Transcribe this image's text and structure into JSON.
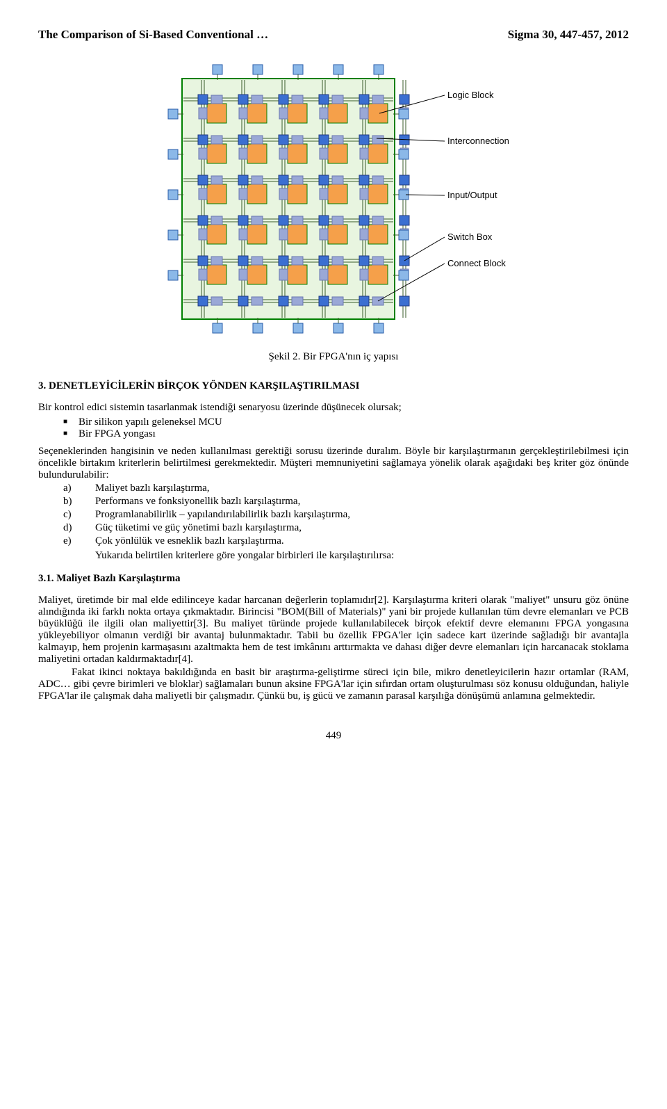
{
  "header": {
    "left": "The Comparison of Si-Based Conventional …",
    "right": "Sigma 30, 447-457, 2012"
  },
  "figure": {
    "caption": "Şekil 2. Bir FPGA'nın iç yapısı",
    "labels": {
      "logic_block": "Logic Block",
      "interconnection": "Interconnection",
      "io": "Input/Output",
      "switch_box": "Switch Box",
      "connect_block": "Connect Block"
    },
    "colors": {
      "bg": "#e8f5e0",
      "outline": "#008000",
      "logic": "#f5a04a",
      "switch": "#3b6fd1",
      "connect": "#9aa8d6",
      "io": "#8bb8e8",
      "line": "#385c2a",
      "text": "#000000"
    }
  },
  "section3": {
    "title": "3. DENETLEYİCİLERİN BİRÇOK YÖNDEN KARŞILAŞTIRILMASI",
    "intro": "Bir kontrol edici sistemin tasarlanmak istendiği senaryosu üzerinde düşünecek olursak;",
    "bullets": [
      "Bir silikon yapılı geleneksel MCU",
      "Bir FPGA yongası"
    ],
    "para1": "Seçeneklerinden hangisinin ve neden kullanılması gerektiği sorusu üzerinde duralım. Böyle bir karşılaştırmanın gerçekleştirilebilmesi için öncelikle birtakım kriterlerin belirtilmesi gerekmektedir. Müşteri memnuniyetini sağlamaya yönelik olarak aşağıdaki beş kriter göz önünde bulundurulabilir:",
    "letters": [
      {
        "l": "a)",
        "t": "Maliyet bazlı karşılaştırma,"
      },
      {
        "l": "b)",
        "t": "Performans ve fonksiyonellik bazlı karşılaştırma,"
      },
      {
        "l": "c)",
        "t": "Programlanabilirlik – yapılandırılabilirlik bazlı karşılaştırma,"
      },
      {
        "l": "d)",
        "t": "Güç tüketimi ve güç yönetimi bazlı karşılaştırma,"
      },
      {
        "l": "e)",
        "t": "Çok yönlülük ve esneklik bazlı karşılaştırma."
      }
    ],
    "after_letters": "Yukarıda belirtilen kriterlere göre yongalar birbirleri ile karşılaştırılırsa:"
  },
  "section31": {
    "title": "3.1. Maliyet Bazlı Karşılaştırma",
    "p1": "Maliyet, üretimde bir mal elde edilinceye kadar harcanan değerlerin toplamıdır[2]. Karşılaştırma kriteri olarak \"maliyet\" unsuru göz önüne alındığında iki farklı nokta ortaya çıkmaktadır. Birincisi \"BOM(Bill of Materials)\" yani bir projede kullanılan tüm devre elemanları ve PCB büyüklüğü ile ilgili olan maliyettir[3]. Bu maliyet türünde projede kullanılabilecek birçok efektif devre elemanını FPGA yongasına yükleyebiliyor olmanın verdiği bir avantaj bulunmaktadır. Tabii bu özellik FPGA'ler için sadece kart üzerinde sağladığı bir avantajla kalmayıp, hem projenin karmaşasını azaltmakta hem de test imkânını arttırmakta ve dahası diğer devre elemanları için harcanacak stoklama maliyetini ortadan kaldırmaktadır[4].",
    "p2": "Fakat ikinci noktaya bakıldığında en basit bir araştırma-geliştirme süreci için bile, mikro denetleyicilerin hazır ortamlar (RAM, ADC… gibi çevre birimleri ve bloklar) sağlamaları bunun aksine FPGA'lar için sıfırdan ortam oluşturulması söz konusu olduğundan, haliyle FPGA'lar ile çalışmak daha maliyetli bir çalışmadır. Çünkü bu, iş gücü ve zamanın parasal karşılığa dönüşümü anlamına gelmektedir."
  },
  "page_number": "449"
}
